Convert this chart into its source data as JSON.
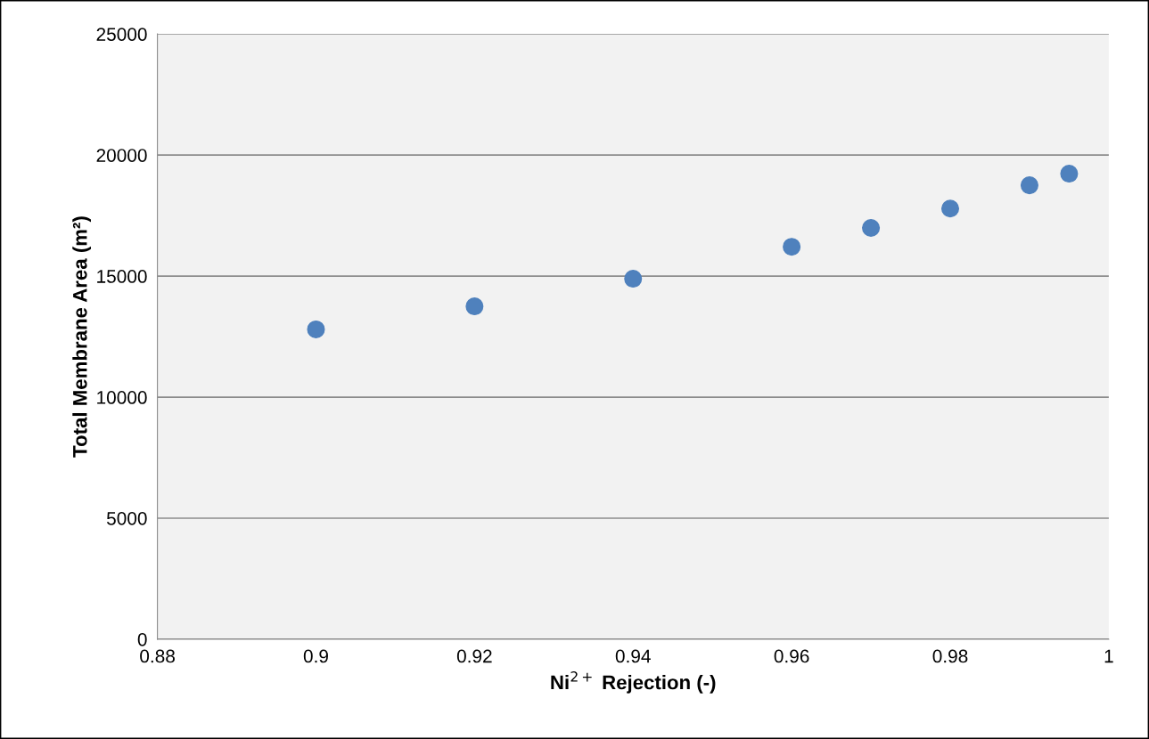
{
  "chart_data": {
    "type": "scatter",
    "xlabel": "Ni$^{2+}$ Rejection (-)",
    "ylabel": "Total Membrane Area (m²)",
    "x": [
      0.9,
      0.92,
      0.94,
      0.96,
      0.97,
      0.98,
      0.99,
      0.995
    ],
    "series": [
      {
        "color": "#4f81bd",
        "values": [
          12800,
          13750,
          14890,
          16210,
          16990,
          17790,
          18750,
          19230
        ]
      }
    ],
    "xlim": [
      0.88,
      1
    ],
    "xticks": [
      0.88,
      0.9,
      0.92,
      0.94,
      0.96,
      0.98,
      1
    ],
    "ylim": [
      0,
      25000
    ],
    "yticks": [
      0,
      5000,
      10000,
      15000,
      20000,
      25000
    ],
    "grid": "y",
    "marker": "circle",
    "legend": false
  }
}
